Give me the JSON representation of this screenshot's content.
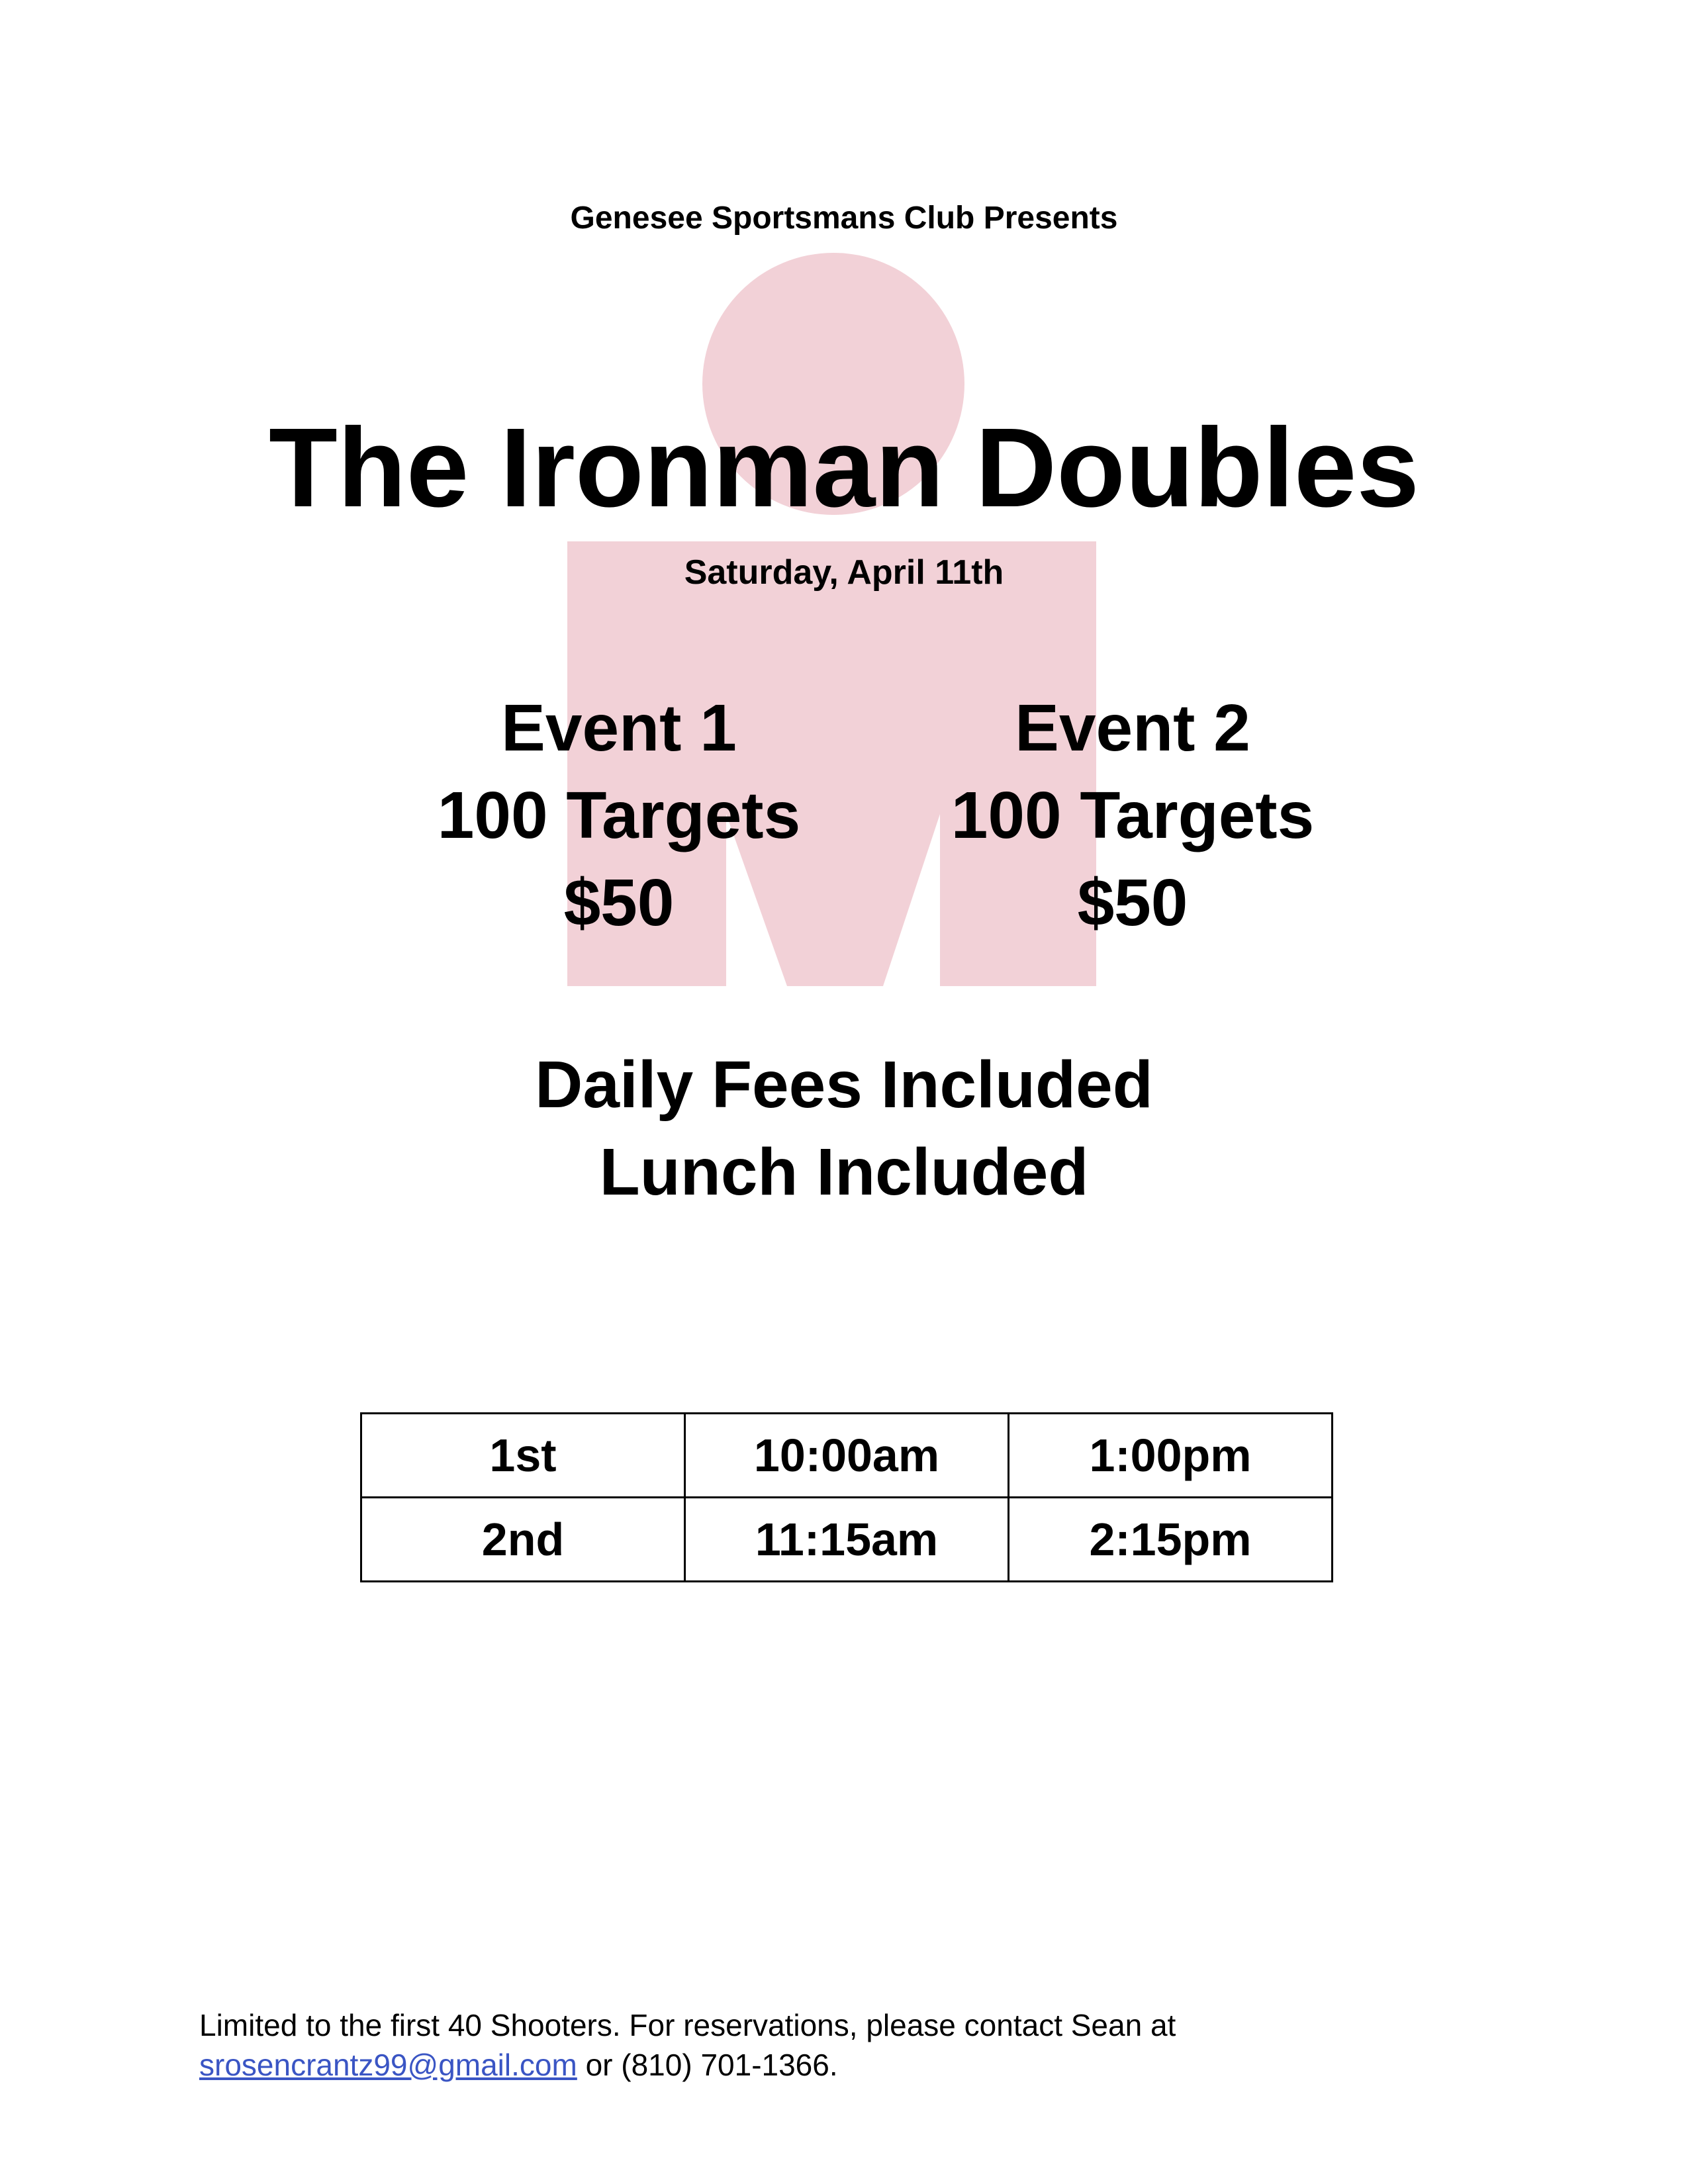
{
  "header": {
    "presenter": "Genesee Sportsmans Club Presents",
    "title": "The Ironman Doubles",
    "date": "Saturday, April 11th"
  },
  "watermark": {
    "icon": "ironman-logo-icon",
    "color": "#f2d1d7"
  },
  "events": [
    {
      "name": "Event 1",
      "targets": "100 Targets",
      "price": "$50"
    },
    {
      "name": "Event 2",
      "targets": "100 Targets",
      "price": "$50"
    }
  ],
  "inclusions": [
    "Daily Fees Included",
    "Lunch Included"
  ],
  "schedule": [
    [
      "1st",
      "10:00am",
      "1:00pm"
    ],
    [
      "2nd",
      "11:15am",
      "2:15pm"
    ]
  ],
  "footer": {
    "text": "Limited to the first 40 Shooters. For reservations, please contact Sean at",
    "email": "srosencrantz99@gmail.com",
    "phone_text": " or (810) 701-1366.",
    "link_color": "#3a55c4"
  }
}
